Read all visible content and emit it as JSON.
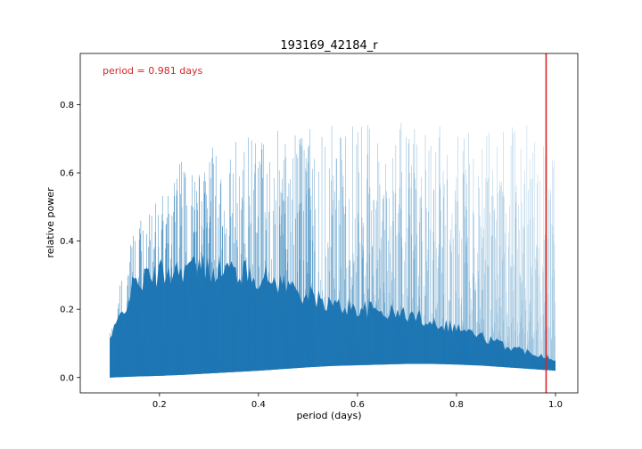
{
  "chart_data": {
    "type": "line",
    "title": "193169_42184_r",
    "xlabel": "period (days)",
    "ylabel": "relative power",
    "xlim": [
      0.04,
      1.045
    ],
    "ylim": [
      -0.045,
      0.95
    ],
    "x_ticks": [
      0.2,
      0.4,
      0.6,
      0.8,
      1.0
    ],
    "x_tick_labels": [
      "0.2",
      "0.4",
      "0.6",
      "0.8",
      "1.0"
    ],
    "y_ticks": [
      0.0,
      0.2,
      0.4,
      0.6,
      0.8
    ],
    "y_tick_labels": [
      "0.0",
      "0.2",
      "0.4",
      "0.6",
      "0.8"
    ],
    "grid": false,
    "series": [
      {
        "color": "#1f77b4",
        "x_range": [
          0.1,
          1.0
        ],
        "envelope_x": [
          0.1,
          0.15,
          0.2,
          0.25,
          0.3,
          0.35,
          0.4,
          0.45,
          0.5,
          0.55,
          0.6,
          0.65,
          0.7,
          0.75,
          0.8,
          0.85,
          0.9,
          0.95,
          1.0
        ],
        "peak_y": [
          0.17,
          0.45,
          0.54,
          0.65,
          0.68,
          0.7,
          0.72,
          0.73,
          0.74,
          0.74,
          0.75,
          0.75,
          0.75,
          0.74,
          0.74,
          0.73,
          0.72,
          0.78,
          0.73
        ],
        "dense_top_y": [
          0.12,
          0.3,
          0.33,
          0.35,
          0.35,
          0.34,
          0.32,
          0.3,
          0.26,
          0.23,
          0.22,
          0.21,
          0.2,
          0.18,
          0.16,
          0.13,
          0.1,
          0.08,
          0.06
        ],
        "floor_y": [
          0.0,
          0.003,
          0.005,
          0.008,
          0.012,
          0.016,
          0.02,
          0.025,
          0.03,
          0.034,
          0.036,
          0.038,
          0.04,
          0.04,
          0.038,
          0.035,
          0.03,
          0.025,
          0.02
        ]
      }
    ],
    "vline": {
      "x": 0.981,
      "color": "#d62728"
    },
    "annotation": {
      "text": "period = 0.981 days",
      "color": "#d62728",
      "x": 0.085,
      "y": 0.89
    }
  }
}
